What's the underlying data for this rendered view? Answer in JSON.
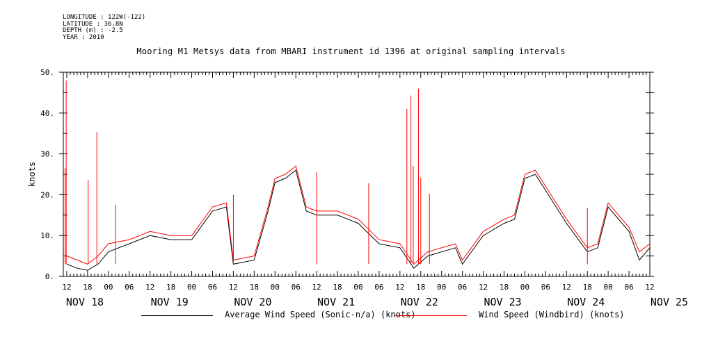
{
  "meta": [
    "LONGITUDE : 122W(-122)",
    "LATITUDE : 36.8N",
    "DEPTH (m) : -2.5",
    "YEAR : 2010"
  ],
  "chart_data": {
    "type": "line",
    "title": "Mooring M1 Metsys data from MBARI instrument id 1396 at original sampling intervals",
    "ylabel": "knots",
    "ylim": [
      0,
      50
    ],
    "yticks": [
      0,
      10,
      20,
      30,
      40,
      50
    ],
    "ytick_labels": [
      "0.",
      "10.",
      "20.",
      "30.",
      "40.",
      "50."
    ],
    "xlim": [
      "2010-11-18T11:00",
      "2010-11-25T12:00"
    ],
    "x_hour_labels": [
      "12",
      "18",
      "00",
      "06",
      "12",
      "18",
      "00",
      "06",
      "12",
      "18",
      "00",
      "06",
      "12",
      "18",
      "00",
      "06",
      "12",
      "18",
      "00",
      "06",
      "12",
      "18",
      "00",
      "06",
      "12",
      "18",
      "00",
      "06",
      "12"
    ],
    "x_day_labels": [
      "NOV 18",
      "NOV 19",
      "NOV 20",
      "NOV 21",
      "NOV 22",
      "NOV 23",
      "NOV 24",
      "NOV 25"
    ],
    "series": [
      {
        "name": "Average Wind Speed (Sonic-n/a) (knots)",
        "color": "#000000",
        "x": [
          "2010-11-18T12:00",
          "2010-11-18T15:00",
          "2010-11-18T18:00",
          "2010-11-18T21:00",
          "2010-11-19T00:00",
          "2010-11-19T06:00",
          "2010-11-19T12:00",
          "2010-11-19T18:00",
          "2010-11-20T00:00",
          "2010-11-20T06:00",
          "2010-11-20T10:00",
          "2010-11-20T12:00",
          "2010-11-20T18:00",
          "2010-11-20T22:00",
          "2010-11-21T00:00",
          "2010-11-21T03:00",
          "2010-11-21T06:00",
          "2010-11-21T09:00",
          "2010-11-21T12:00",
          "2010-11-21T18:00",
          "2010-11-22T00:00",
          "2010-11-22T06:00",
          "2010-11-22T12:00",
          "2010-11-22T16:00",
          "2010-11-22T20:00",
          "2010-11-23T00:00",
          "2010-11-23T04:00",
          "2010-11-23T06:00",
          "2010-11-23T12:00",
          "2010-11-23T18:00",
          "2010-11-23T21:00",
          "2010-11-24T00:00",
          "2010-11-24T03:00",
          "2010-11-24T06:00",
          "2010-11-24T12:00",
          "2010-11-24T18:00",
          "2010-11-24T21:00",
          "2010-11-25T00:00",
          "2010-11-25T06:00",
          "2010-11-25T09:00",
          "2010-11-25T12:00"
        ],
        "values": [
          3,
          2,
          1.5,
          3,
          6,
          8,
          10,
          9,
          9,
          16,
          17,
          3,
          4,
          16,
          23,
          24,
          26,
          16,
          15,
          15,
          13,
          8,
          7,
          2,
          5,
          6,
          7,
          3,
          10,
          13,
          14,
          24,
          25,
          21,
          13,
          6,
          7,
          17,
          11,
          4,
          7
        ]
      },
      {
        "name": "Wind Speed (Windbird) (knots)",
        "color": "#ff0000",
        "x": [
          "2010-11-18T12:00",
          "2010-11-18T15:00",
          "2010-11-18T18:00",
          "2010-11-18T21:00",
          "2010-11-19T00:00",
          "2010-11-19T06:00",
          "2010-11-19T12:00",
          "2010-11-19T18:00",
          "2010-11-20T00:00",
          "2010-11-20T06:00",
          "2010-11-20T10:00",
          "2010-11-20T12:00",
          "2010-11-20T18:00",
          "2010-11-20T22:00",
          "2010-11-21T00:00",
          "2010-11-21T03:00",
          "2010-11-21T06:00",
          "2010-11-21T09:00",
          "2010-11-21T12:00",
          "2010-11-21T18:00",
          "2010-11-22T00:00",
          "2010-11-22T06:00",
          "2010-11-22T12:00",
          "2010-11-22T16:00",
          "2010-11-22T20:00",
          "2010-11-23T00:00",
          "2010-11-23T04:00",
          "2010-11-23T06:00",
          "2010-11-23T12:00",
          "2010-11-23T18:00",
          "2010-11-23T21:00",
          "2010-11-24T00:00",
          "2010-11-24T03:00",
          "2010-11-24T06:00",
          "2010-11-24T12:00",
          "2010-11-24T18:00",
          "2010-11-24T21:00",
          "2010-11-25T00:00",
          "2010-11-25T06:00",
          "2010-11-25T09:00",
          "2010-11-25T12:00"
        ],
        "values": [
          5,
          4,
          3,
          5,
          8,
          9,
          11,
          10,
          10,
          17,
          18,
          4,
          5,
          17,
          24,
          25,
          27,
          17,
          16,
          16,
          14,
          9,
          8,
          3,
          6,
          7,
          8,
          4,
          11,
          14,
          15,
          25,
          26,
          22,
          14,
          7,
          8,
          18,
          12,
          6,
          8
        ],
        "gust_x": [
          "2010-11-18T11:30",
          "2010-11-18T11:50",
          "2010-11-18T20:40",
          "2010-11-18T18:10",
          "2010-11-19T02:00",
          "2010-11-20T12:00",
          "2010-11-21T12:00",
          "2010-11-22T03:00",
          "2010-11-22T14:00",
          "2010-11-22T15:10",
          "2010-11-22T15:50",
          "2010-11-22T17:20",
          "2010-11-22T18:00",
          "2010-11-22T20:30",
          "2010-11-24T18:00"
        ],
        "gust_values": [
          26.5,
          48,
          35.3,
          23.6,
          17.5,
          20,
          25.5,
          22.8,
          41,
          44.3,
          27,
          46,
          24.2,
          20.2,
          16.8
        ]
      }
    ]
  }
}
